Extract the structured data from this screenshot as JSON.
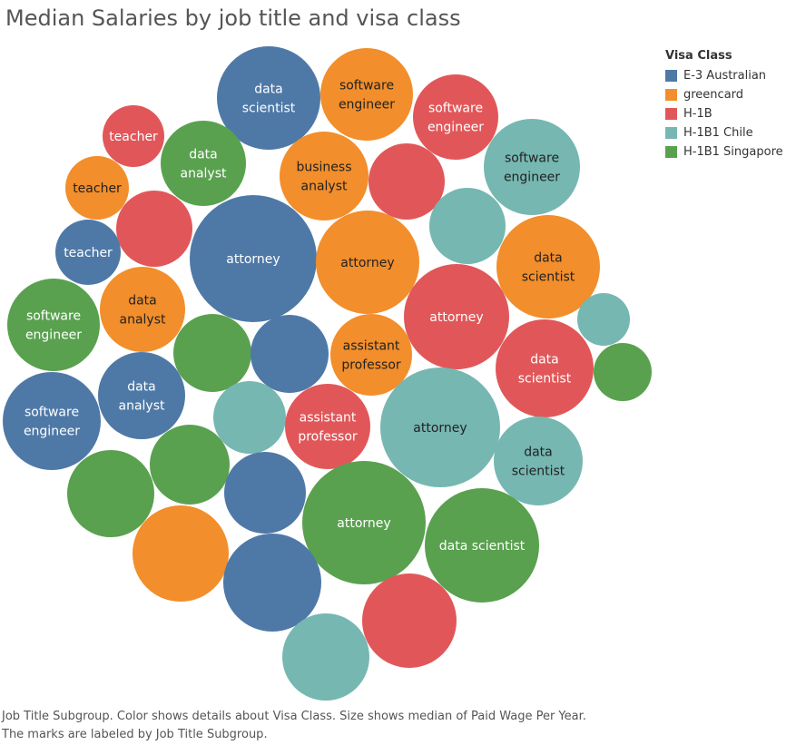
{
  "title": "Median Salaries by job title and visa class",
  "legend": {
    "title": "Visa Class",
    "items": [
      {
        "label": "E-3 Australian",
        "color": "#4e79a7"
      },
      {
        "label": "greencard",
        "color": "#f28e2b"
      },
      {
        "label": "H-1B",
        "color": "#e15759"
      },
      {
        "label": "H-1B1 Chile",
        "color": "#76b7b2"
      },
      {
        "label": "H-1B1 Singapore",
        "color": "#59a14f"
      }
    ]
  },
  "caption": {
    "line1": "Job Title Subgroup.  Color shows details about Visa Class.  Size shows median of Paid Wage Per Year.",
    "line2": "The marks are labeled by Job Title Subgroup."
  },
  "chart_data": {
    "type": "bubble",
    "size_measure": "median of Paid Wage Per Year",
    "color_dimension": "Visa Class",
    "label_dimension": "Job Title Subgroup",
    "marks": [
      {
        "visa_class": "E-3 Australian",
        "label": "data scientist"
      },
      {
        "visa_class": "greencard",
        "label": "software engineer"
      },
      {
        "visa_class": "H-1B",
        "label": "software engineer"
      },
      {
        "visa_class": "H-1B",
        "label": "teacher"
      },
      {
        "visa_class": "H-1B1 Singapore",
        "label": "data analyst"
      },
      {
        "visa_class": "greencard",
        "label": "business analyst"
      },
      {
        "visa_class": "H-1B1 Chile",
        "label": "software engineer"
      },
      {
        "visa_class": "greencard",
        "label": "teacher"
      },
      {
        "visa_class": "H-1B",
        "label": ""
      },
      {
        "visa_class": "H-1B",
        "label": ""
      },
      {
        "visa_class": "E-3 Australian",
        "label": "teacher"
      },
      {
        "visa_class": "E-3 Australian",
        "label": "attorney"
      },
      {
        "visa_class": "greencard",
        "label": "attorney"
      },
      {
        "visa_class": "H-1B1 Chile",
        "label": ""
      },
      {
        "visa_class": "greencard",
        "label": "data scientist"
      },
      {
        "visa_class": "H-1B1 Singapore",
        "label": "software engineer"
      },
      {
        "visa_class": "greencard",
        "label": "data analyst"
      },
      {
        "visa_class": "H-1B",
        "label": "attorney"
      },
      {
        "visa_class": "H-1B1 Chile",
        "label": ""
      },
      {
        "visa_class": "H-1B1 Singapore",
        "label": ""
      },
      {
        "visa_class": "E-3 Australian",
        "label": ""
      },
      {
        "visa_class": "greencard",
        "label": "assistant professor"
      },
      {
        "visa_class": "H-1B",
        "label": "data scientist"
      },
      {
        "visa_class": "H-1B1 Singapore",
        "label": ""
      },
      {
        "visa_class": "E-3 Australian",
        "label": "software engineer"
      },
      {
        "visa_class": "E-3 Australian",
        "label": "data analyst"
      },
      {
        "visa_class": "H-1B1 Chile",
        "label": ""
      },
      {
        "visa_class": "H-1B",
        "label": "assistant professor"
      },
      {
        "visa_class": "H-1B1 Chile",
        "label": "attorney"
      },
      {
        "visa_class": "H-1B1 Chile",
        "label": "data scientist"
      },
      {
        "visa_class": "H-1B1 Singapore",
        "label": ""
      },
      {
        "visa_class": "H-1B1 Singapore",
        "label": ""
      },
      {
        "visa_class": "E-3 Australian",
        "label": ""
      },
      {
        "visa_class": "H-1B1 Singapore",
        "label": "attorney"
      },
      {
        "visa_class": "H-1B1 Singapore",
        "label": "data scientist"
      },
      {
        "visa_class": "greencard",
        "label": ""
      },
      {
        "visa_class": "E-3 Australian",
        "label": ""
      },
      {
        "visa_class": "H-1B",
        "label": ""
      },
      {
        "visa_class": "H-1B1 Chile",
        "label": ""
      }
    ]
  }
}
